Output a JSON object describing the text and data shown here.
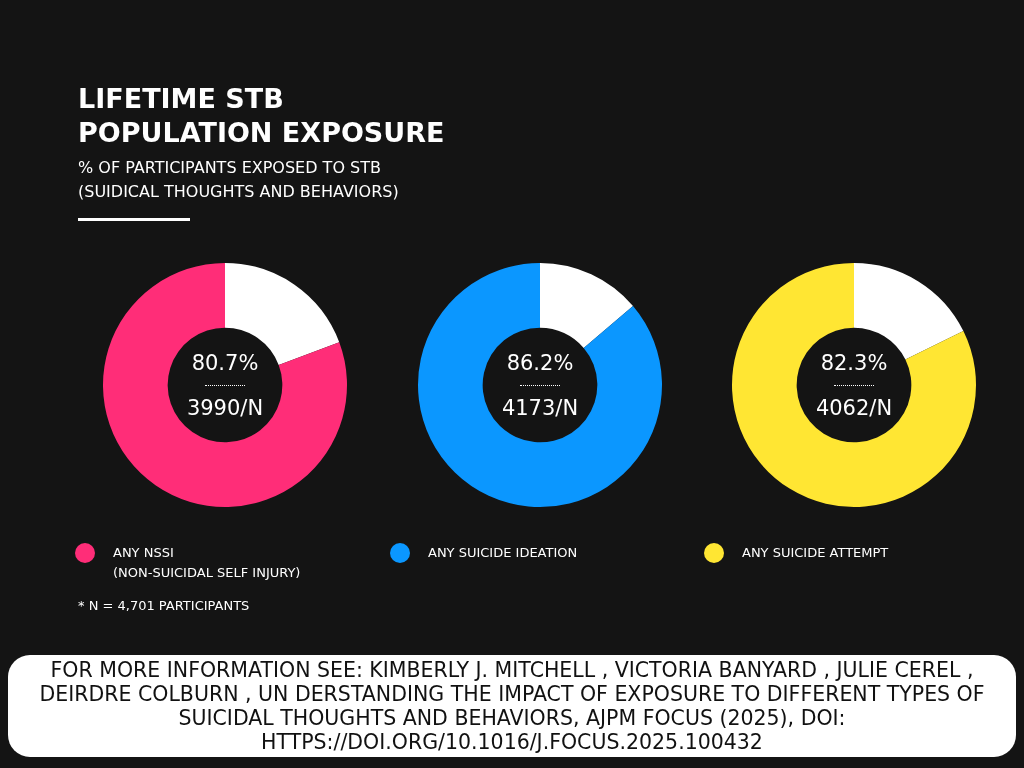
{
  "chart_data": [
    {
      "type": "donut",
      "title": "LIFETIME STB\nPOPULATION EXPOSURE",
      "subtitle": "% OF PARTICIPANTS EXPOSED TO STB\n(SUIDICAL THOUGHTS AND BEHAVIORS)",
      "categories": [
        null,
        "ANY NSSI\n(NON-SUICIDAL SELF INJURY)"
      ],
      "values": [
        19.3,
        80.7
      ],
      "colors": [
        "#ffffff",
        "#ff2d78"
      ],
      "legend": "bottom",
      "annotations": [
        "80.7%",
        "3990/N",
        "*  N = 4,701 PARTICIPANTS"
      ]
    },
    {
      "type": "donut",
      "categories": [
        null,
        "ANY SUICIDE IDEATION"
      ],
      "values": [
        13.8,
        86.2
      ],
      "colors": [
        "#ffffff",
        "#0b97ff"
      ],
      "legend": "bottom",
      "annotations": [
        "86.2%",
        "4173/N"
      ]
    },
    {
      "type": "donut",
      "categories": [
        null,
        "ANY SUICIDE ATTEMPT"
      ],
      "values": [
        17.7,
        82.3
      ],
      "colors": [
        "#ffffff",
        "#ffe633"
      ],
      "legend": "bottom",
      "annotations": [
        "82.3%",
        "4062/N",
        "FOR MORE INFORMATION SEE: KIMBERLY J. MITCHELL , VICTORIA BANYARD , JULIE CEREL , DEIRDRE COLBURN , UN DERSTANDING THE IMPACT OF EXPOSURE TO DIFFERENT TYPES OF SUICIDAL THOUGHTS AND BEHAVIORS, AJPM FOCUS (2025), DOI: HTTPS://DOI.ORG/10.1016/J.FOCUS.2025.100432"
      ]
    }
  ]
}
